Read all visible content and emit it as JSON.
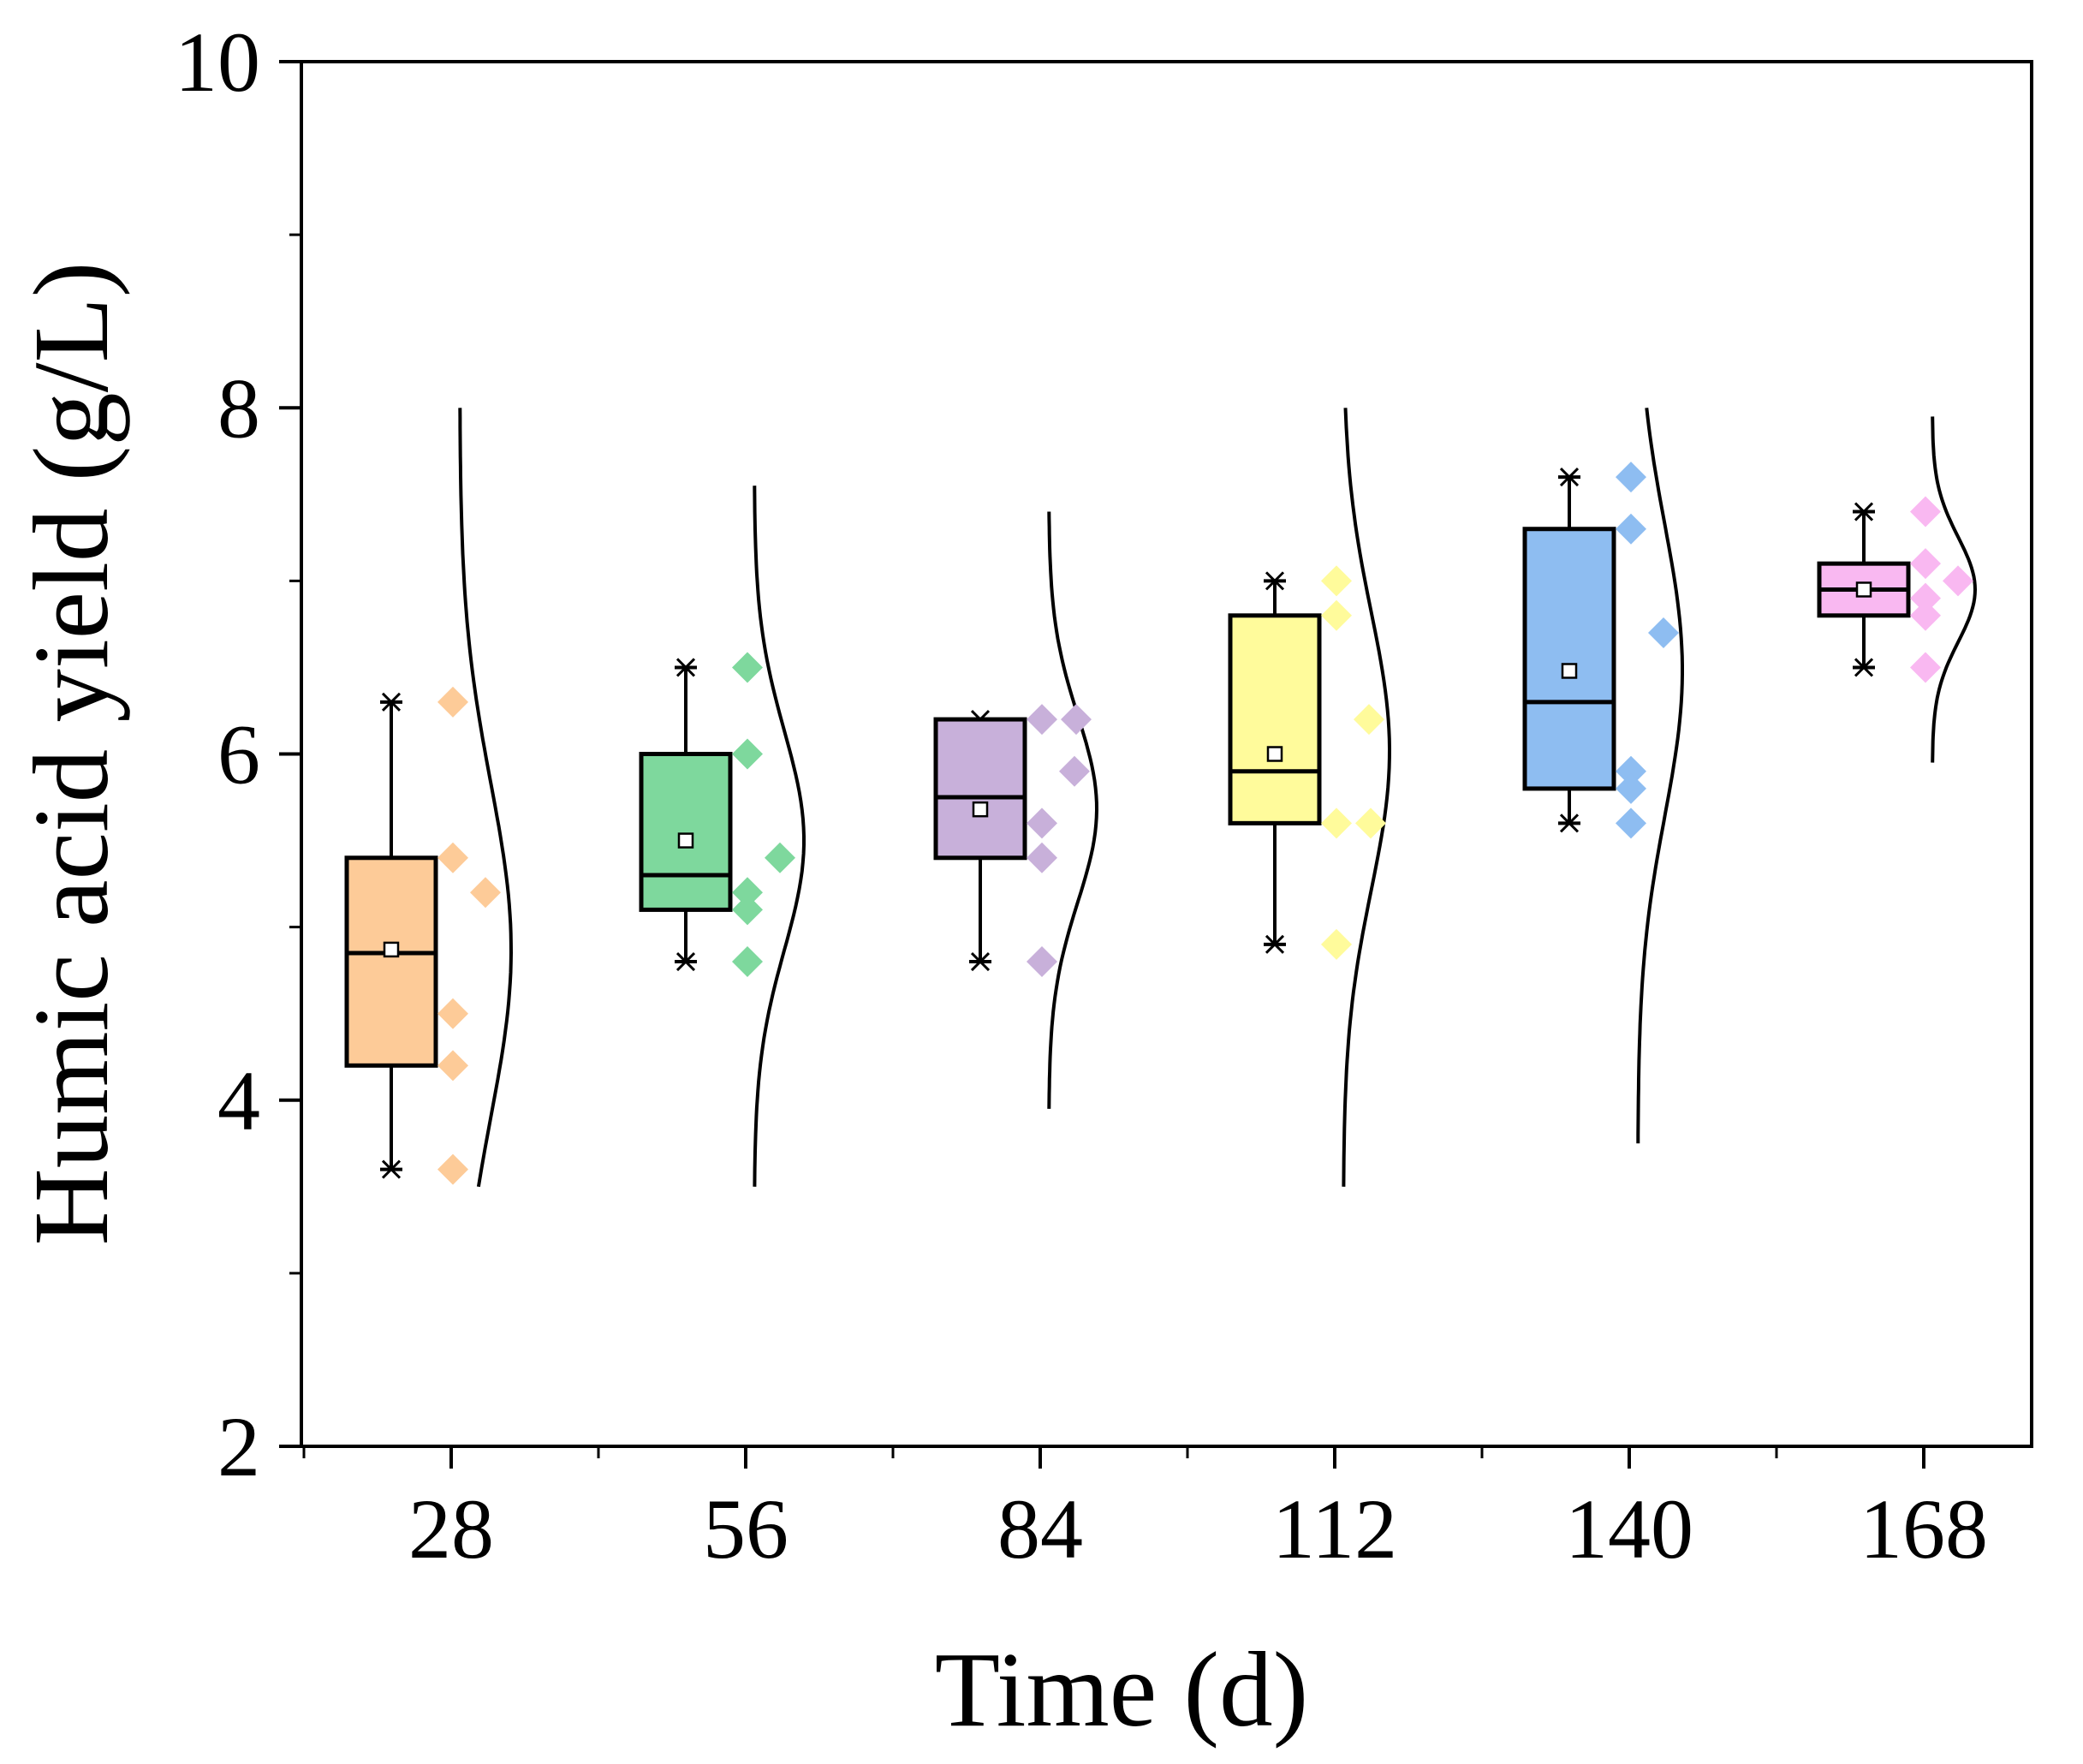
{
  "chart_data": {
    "type": "box",
    "title": "",
    "xlabel": "Time (d)",
    "ylabel": "Humic acid yield (g/L)",
    "ylim": [
      2,
      10
    ],
    "yticks": [
      "2",
      "4",
      "6",
      "8",
      "10"
    ],
    "y_minor_ticks": [
      3,
      5,
      7,
      9
    ],
    "grid": false,
    "categories": [
      "28",
      "56",
      "84",
      "112",
      "140",
      "168"
    ],
    "series": [
      {
        "name": "28",
        "color": "#FDCB98",
        "whisker_low": 3.6,
        "q1": 4.2,
        "median": 4.85,
        "q3": 5.4,
        "whisker_high": 6.3,
        "mean": 4.87,
        "points": [
          6.3,
          5.4,
          5.2,
          4.5,
          4.2,
          3.6
        ],
        "curve_range": [
          3.5,
          8.0
        ]
      },
      {
        "name": "56",
        "color": "#7ED89D",
        "whisker_low": 4.8,
        "q1": 5.1,
        "median": 5.3,
        "q3": 6.0,
        "whisker_high": 6.5,
        "mean": 5.5,
        "points": [
          6.5,
          6.0,
          5.4,
          5.2,
          5.1,
          4.8
        ],
        "curve_range": [
          3.5,
          7.55
        ]
      },
      {
        "name": "84",
        "color": "#C8B0DA",
        "whisker_low": 4.8,
        "q1": 5.4,
        "median": 5.75,
        "q3": 6.2,
        "whisker_high": 6.2,
        "mean": 5.68,
        "points": [
          6.2,
          6.2,
          5.9,
          5.6,
          5.4,
          4.8
        ],
        "curve_range": [
          3.95,
          7.4
        ]
      },
      {
        "name": "112",
        "color": "#FFFB9B",
        "whisker_low": 4.9,
        "q1": 5.6,
        "median": 5.9,
        "q3": 6.8,
        "whisker_high": 7.0,
        "mean": 6.0,
        "points": [
          7.0,
          6.8,
          6.2,
          5.6,
          5.6,
          4.9
        ],
        "curve_range": [
          3.5,
          8.0
        ]
      },
      {
        "name": "140",
        "color": "#8EBDF1",
        "whisker_low": 5.6,
        "q1": 5.8,
        "median": 6.3,
        "q3": 7.3,
        "whisker_high": 7.6,
        "mean": 6.48,
        "points": [
          7.6,
          7.3,
          6.7,
          5.9,
          5.8,
          5.6
        ],
        "curve_range": [
          3.75,
          8.0
        ]
      },
      {
        "name": "168",
        "color": "#F9B8F1",
        "whisker_low": 6.5,
        "q1": 6.8,
        "median": 6.95,
        "q3": 7.1,
        "whisker_high": 7.4,
        "mean": 6.95,
        "points": [
          7.4,
          7.1,
          7.0,
          6.9,
          6.8,
          6.5
        ],
        "curve_range": [
          5.95,
          7.95
        ]
      }
    ]
  }
}
